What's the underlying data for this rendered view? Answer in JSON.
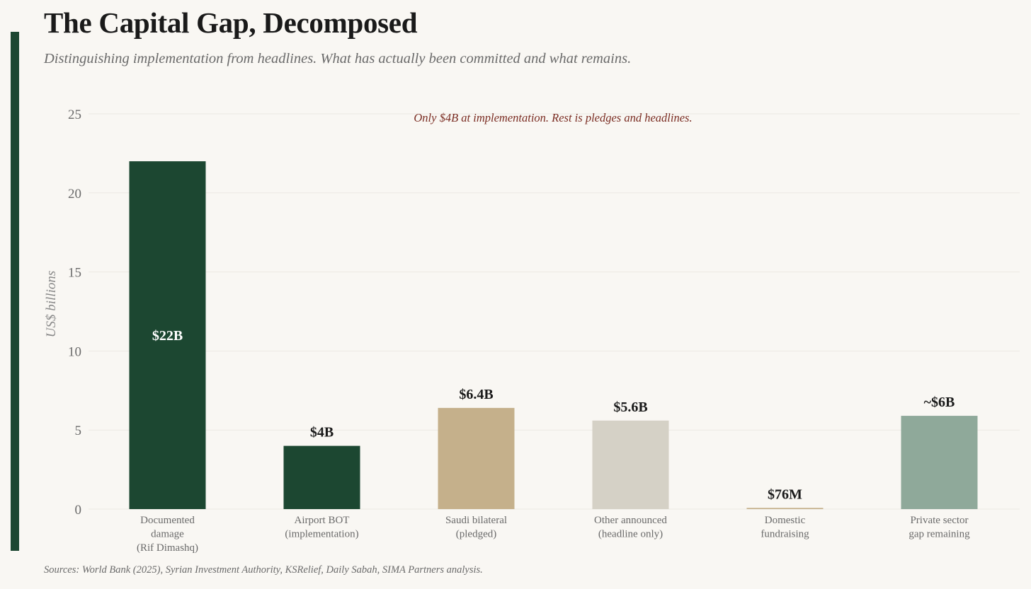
{
  "header": {
    "title": "The Capital Gap, Decomposed",
    "subtitle": "Distinguishing implementation from headlines. What has actually been committed and what remains."
  },
  "footer": {
    "source": "Sources: World Bank (2025), Syrian Investment Authority, KSRelief, Daily Sabah, SIMA Partners analysis."
  },
  "colors": {
    "accent": "#1c4731",
    "annotation": "#7a2c22"
  },
  "chart_data": {
    "type": "bar",
    "title": "The Capital Gap, Decomposed",
    "xlabel": "",
    "ylabel": "US$ billions",
    "ylim": [
      0,
      25
    ],
    "yticks": [
      0,
      5,
      10,
      15,
      20,
      25
    ],
    "grid": true,
    "annotation": "Only $4B at implementation. Rest is pledges and headlines.",
    "categories": [
      [
        "Documented",
        "damage",
        "(Rif Dimashq)"
      ],
      [
        "Airport BOT",
        "(implementation)"
      ],
      [
        "Saudi bilateral",
        "(pledged)"
      ],
      [
        "Other announced",
        "(headline only)"
      ],
      [
        "Domestic",
        "fundraising"
      ],
      [
        "Private sector",
        "gap remaining"
      ]
    ],
    "values": [
      22,
      4,
      6.4,
      5.6,
      0.076,
      5.9
    ],
    "value_labels": [
      "$22B",
      "$4B",
      "$6.4B",
      "$5.6B",
      "$76M",
      "~$6B"
    ],
    "label_inside": [
      true,
      false,
      false,
      false,
      false,
      false
    ],
    "bar_colors": [
      "#1c4731",
      "#1c4731",
      "#c5b08b",
      "#d5d1c6",
      "#c5b08b",
      "#8fa99a"
    ]
  }
}
